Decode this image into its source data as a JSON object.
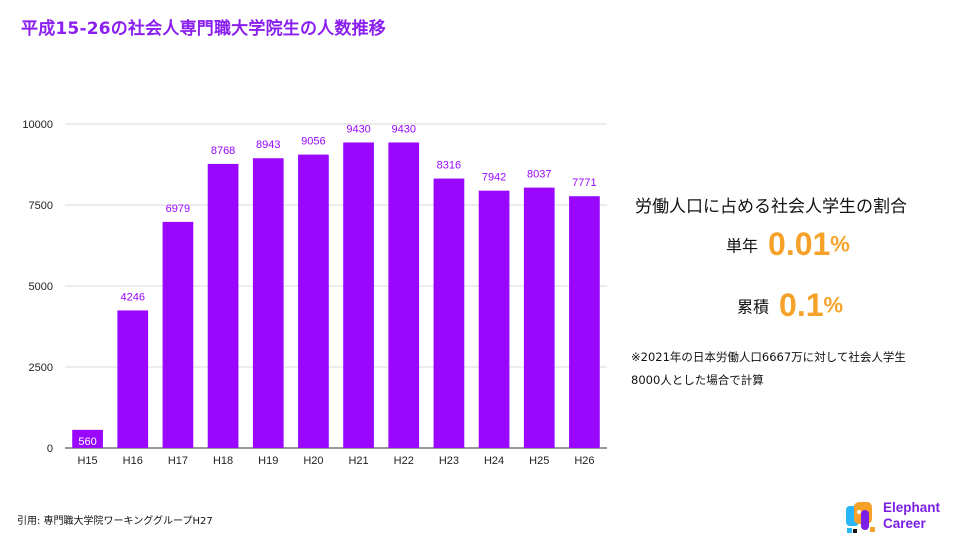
{
  "title": "平成15-26の社会人専門職大学院生の人数推移",
  "chart_data": {
    "type": "bar",
    "categories": [
      "H15",
      "H16",
      "H17",
      "H18",
      "H19",
      "H20",
      "H21",
      "H22",
      "H23",
      "H24",
      "H25",
      "H26"
    ],
    "values": [
      560,
      4246,
      6979,
      8768,
      8943,
      9056,
      9430,
      9430,
      8316,
      7942,
      8037,
      7771
    ],
    "data_labels": [
      "560",
      "4246",
      "6979",
      "8768",
      "8943",
      "9056",
      "9430",
      "9430",
      "8316",
      "7942",
      "8037",
      "7771"
    ],
    "yticks": [
      0,
      2500,
      5000,
      7500,
      10000
    ],
    "ytick_labels": [
      "0",
      "2500",
      "5000",
      "7500",
      "10000"
    ],
    "ylim": [
      0,
      10000
    ],
    "grid": true,
    "bar_color": "#9a07ff",
    "label_color": "#9a07ff"
  },
  "side": {
    "heading": "労働人口に占める社会人学生の割合",
    "single_label": "単年",
    "single_value": "0.01",
    "single_unit": "%",
    "cum_label": "累積",
    "cum_value": "0.1",
    "cum_unit": "%",
    "note_line1": "※2021年の日本労働人口6667万に対して社会人学生",
    "note_line2": "8000人とした場合で計算"
  },
  "source": "引用: 専門職大学院ワーキンググループH27",
  "brand": {
    "line1": "Elephant",
    "line2": "Career",
    "color": "#7b1ee6"
  },
  "colors": {
    "accent": "#f6a22a",
    "title": "#8a1ff0"
  }
}
